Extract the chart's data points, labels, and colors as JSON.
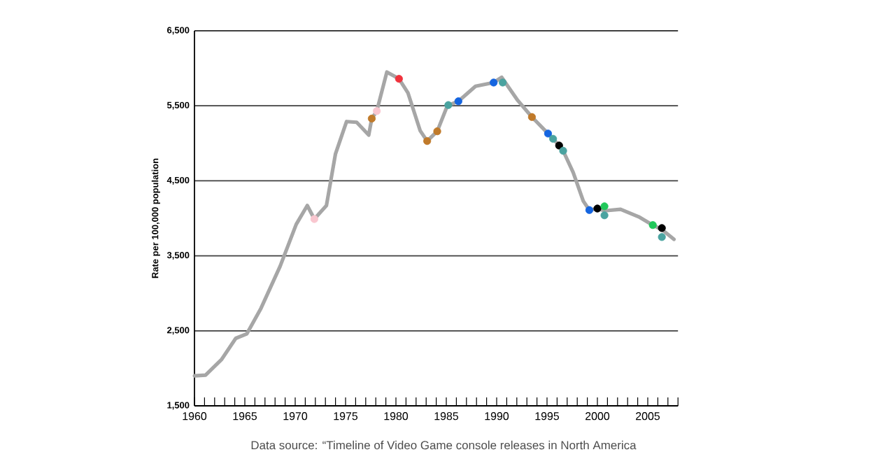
{
  "chart_data": {
    "type": "line",
    "ylabel": "Rate per 100,000 population",
    "xlim": [
      1960,
      2008
    ],
    "xticks": [
      1960,
      {
        "value": 1961,
        "label": null
      },
      {
        "value": 1962,
        "label": null
      },
      {
        "value": 1963,
        "label": null
      },
      {
        "value": 1964,
        "label": null
      },
      1965,
      {
        "value": 1966,
        "label": null
      },
      {
        "value": 1967,
        "label": null
      },
      {
        "value": 1968,
        "label": null
      },
      {
        "value": 1969,
        "label": null
      },
      1970,
      {
        "value": 1971,
        "label": null
      },
      {
        "value": 1972,
        "label": null
      },
      {
        "value": 1973,
        "label": null
      },
      {
        "value": 1974,
        "label": null
      },
      1975,
      {
        "value": 1976,
        "label": null
      },
      {
        "value": 1977,
        "label": null
      },
      {
        "value": 1978,
        "label": null
      },
      {
        "value": 1979,
        "label": null
      },
      1980,
      {
        "value": 1981,
        "label": null
      },
      {
        "value": 1982,
        "label": null
      },
      {
        "value": 1983,
        "label": null
      },
      {
        "value": 1984,
        "label": null
      },
      1985,
      {
        "value": 1986,
        "label": null
      },
      {
        "value": 1987,
        "label": null
      },
      {
        "value": 1988,
        "label": null
      },
      {
        "value": 1989,
        "label": null
      },
      1990,
      {
        "value": 1991,
        "label": null
      },
      {
        "value": 1992,
        "label": null
      },
      {
        "value": 1993,
        "label": null
      },
      {
        "value": 1994,
        "label": null
      },
      1995,
      {
        "value": 1996,
        "label": null
      },
      {
        "value": 1997,
        "label": null
      },
      {
        "value": 1998,
        "label": null
      },
      {
        "value": 1999,
        "label": null
      },
      2000,
      {
        "value": 2001,
        "label": null
      },
      {
        "value": 2002,
        "label": null
      },
      {
        "value": 2003,
        "label": null
      },
      {
        "value": 2004,
        "label": null
      },
      2005,
      {
        "value": 2006,
        "label": null
      },
      {
        "value": 2007,
        "label": null
      },
      {
        "value": 2008,
        "label": null
      }
    ],
    "ylim": [
      1500,
      6500
    ],
    "yticks": [
      {
        "value": 1500,
        "label": "1,500"
      },
      {
        "value": 2500,
        "label": "2,500"
      },
      {
        "value": 3500,
        "label": "3,500"
      },
      {
        "value": 4500,
        "label": "4,500"
      },
      {
        "value": 5500,
        "label": "5,500"
      },
      {
        "value": 6500,
        "label": "6,500"
      }
    ],
    "grid": "y",
    "series": [
      {
        "color": "#a6a6a6",
        "marker": "none",
        "line_style": "solid",
        "x": [
          1960,
          1961.1,
          1962.7,
          1964.1,
          1965.2,
          1966.6,
          1968.5,
          1970.1,
          1971.2,
          1971.9,
          1973.1,
          1974,
          1975.1,
          1976.1,
          1977.3,
          1977.6,
          1978.1,
          1979.1,
          1980.3,
          1981.2,
          1982.4,
          1983.1,
          1984.1,
          1985.1,
          1986.2,
          1987.9,
          1989.7,
          1990.5,
          1992.1,
          1993.5,
          1995.1,
          1995.6,
          1996.2,
          1996.6,
          1997.6,
          1998.6,
          1999.2,
          2000,
          2000.7,
          2002.3,
          2004.1,
          2005.5,
          2006.4,
          2007.6
        ],
        "values": [
          1900,
          1910,
          2120,
          2400,
          2460,
          2800,
          3360,
          3920,
          4170,
          3990,
          4170,
          4860,
          5290,
          5280,
          5110,
          5330,
          5430,
          5950,
          5860,
          5670,
          5170,
          5030,
          5160,
          5500,
          5560,
          5760,
          5810,
          5880,
          5570,
          5350,
          5130,
          5060,
          4970,
          4900,
          4610,
          4230,
          4110,
          4130,
          4100,
          4120,
          4020,
          3910,
          3850,
          3720
        ]
      },
      {
        "type": "scatter",
        "marker": "circle",
        "x": [
          1971.9,
          1977.6,
          1978.1,
          1980.3,
          1983.1,
          1984.1,
          1985.2,
          1986.2,
          1989.7,
          1990.6,
          1993.5,
          1995.1,
          1995.6,
          1996.2,
          1996.6,
          1999.2,
          2000,
          2000.7,
          2000.7,
          2005.5,
          2006.4,
          2006.4
        ],
        "values": [
          3990,
          5330,
          5430,
          5860,
          5030,
          5160,
          5510,
          5560,
          5810,
          5810,
          5350,
          5130,
          5060,
          4970,
          4900,
          4110,
          4130,
          4160,
          4040,
          3910,
          3870,
          3750
        ],
        "colors": [
          "#f9c6cf",
          "#c07a2a",
          "#f9c6cf",
          "#f0323c",
          "#c07a2a",
          "#c07a2a",
          "#4aa3a0",
          "#1565e0",
          "#1565e0",
          "#4aa3a0",
          "#c07a2a",
          "#1565e0",
          "#4aa3a0",
          "#000000",
          "#4aa3a0",
          "#1565e0",
          "#000000",
          "#21c85a",
          "#4aa3a0",
          "#21c85a",
          "#000000",
          "#4aa3a0"
        ]
      }
    ],
    "annotations": [
      "Data source: “Timeline of Video Game console releases in North America"
    ]
  }
}
